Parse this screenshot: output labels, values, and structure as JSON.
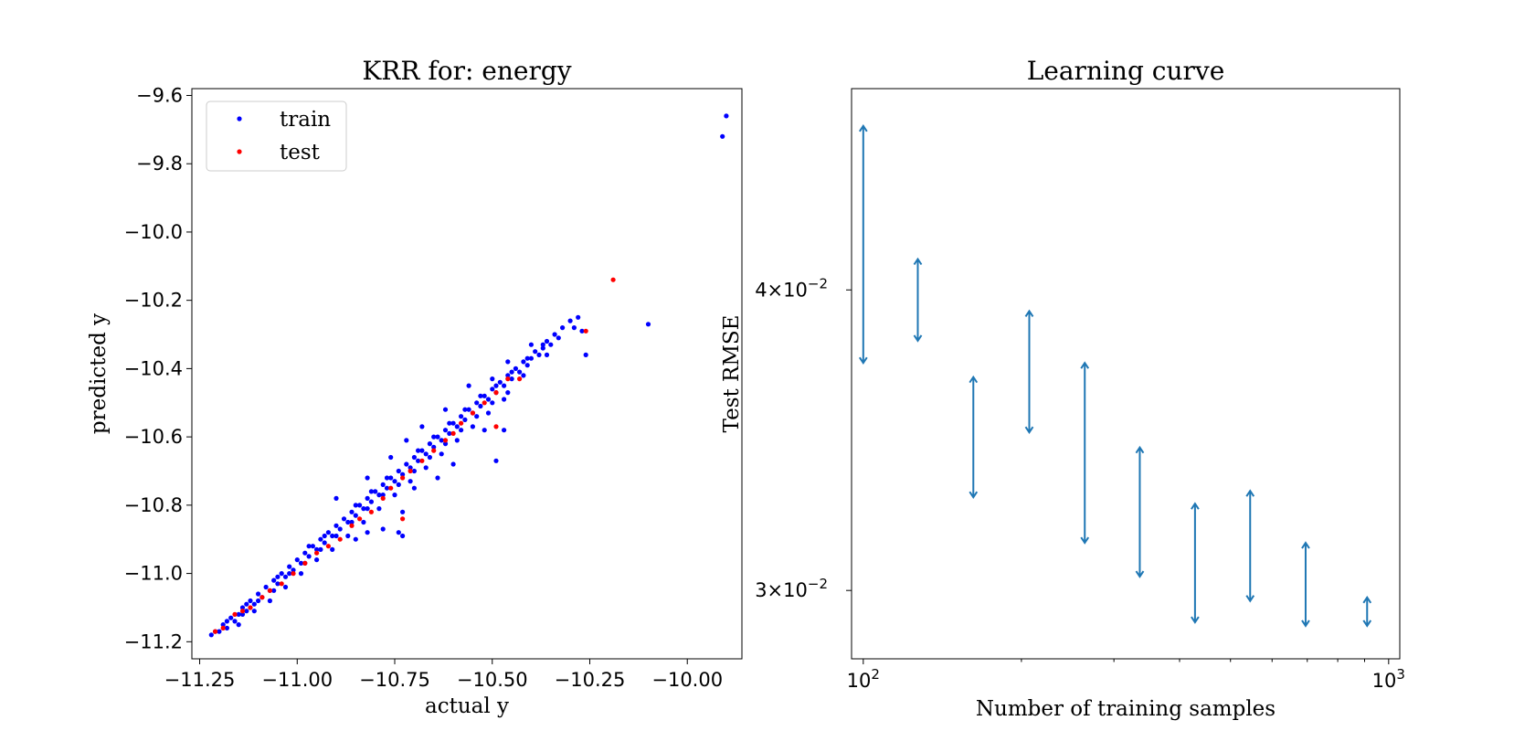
{
  "chart_data": [
    {
      "type": "scatter",
      "title": "KRR for: energy",
      "xlabel": "actual y",
      "ylabel": "predicted y",
      "xlim": [
        -11.27,
        -9.86
      ],
      "ylim": [
        -11.25,
        -9.58
      ],
      "xticks": [
        -11.25,
        -11.0,
        -10.75,
        -10.5,
        -10.25,
        -10.0
      ],
      "xtick_labels": [
        "−11.25",
        "−11.00",
        "−10.75",
        "−10.50",
        "−10.25",
        "−10.00"
      ],
      "yticks": [
        -11.2,
        -11.0,
        -10.8,
        -10.6,
        -10.4,
        -10.2,
        -10.0,
        -9.8,
        -9.6
      ],
      "ytick_labels": [
        "−11.2",
        "−11.0",
        "−10.8",
        "−10.6",
        "−10.4",
        "−10.2",
        "−10.0",
        "−9.8",
        "−9.6"
      ],
      "grid": false,
      "legend": "upper-left",
      "series": [
        {
          "name": "train",
          "color": "#0000ff",
          "points": [
            [
              -11.22,
              -11.18
            ],
            [
              -11.21,
              -11.17
            ],
            [
              -11.2,
              -11.17
            ],
            [
              -11.19,
              -11.15
            ],
            [
              -11.18,
              -11.16
            ],
            [
              -11.17,
              -11.13
            ],
            [
              -11.16,
              -11.14
            ],
            [
              -11.15,
              -11.12
            ],
            [
              -11.14,
              -11.1
            ],
            [
              -11.13,
              -11.11
            ],
            [
              -11.12,
              -11.08
            ],
            [
              -11.11,
              -11.09
            ],
            [
              -11.1,
              -11.06
            ],
            [
              -11.09,
              -11.07
            ],
            [
              -11.08,
              -11.04
            ],
            [
              -11.07,
              -11.05
            ],
            [
              -11.06,
              -11.02
            ],
            [
              -11.05,
              -11.03
            ],
            [
              -11.04,
              -11.0
            ],
            [
              -11.03,
              -11.01
            ],
            [
              -11.02,
              -10.98
            ],
            [
              -11.01,
              -10.99
            ],
            [
              -11.0,
              -10.96
            ],
            [
              -10.99,
              -10.97
            ],
            [
              -10.98,
              -10.94
            ],
            [
              -10.97,
              -10.95
            ],
            [
              -10.96,
              -10.92
            ],
            [
              -10.95,
              -10.93
            ],
            [
              -10.94,
              -10.9
            ],
            [
              -10.93,
              -10.91
            ],
            [
              -10.92,
              -10.88
            ],
            [
              -10.91,
              -10.89
            ],
            [
              -10.9,
              -10.86
            ],
            [
              -10.89,
              -10.87
            ],
            [
              -10.88,
              -10.84
            ],
            [
              -10.87,
              -10.85
            ],
            [
              -10.86,
              -10.82
            ],
            [
              -10.85,
              -10.83
            ],
            [
              -10.84,
              -10.8
            ],
            [
              -10.83,
              -10.81
            ],
            [
              -10.82,
              -10.78
            ],
            [
              -10.81,
              -10.79
            ],
            [
              -10.8,
              -10.76
            ],
            [
              -10.79,
              -10.77
            ],
            [
              -10.78,
              -10.74
            ],
            [
              -10.77,
              -10.75
            ],
            [
              -10.76,
              -10.72
            ],
            [
              -10.75,
              -10.73
            ],
            [
              -10.74,
              -10.7
            ],
            [
              -10.73,
              -10.71
            ],
            [
              -10.72,
              -10.68
            ],
            [
              -10.71,
              -10.69
            ],
            [
              -10.7,
              -10.66
            ],
            [
              -10.69,
              -10.67
            ],
            [
              -10.68,
              -10.64
            ],
            [
              -10.67,
              -10.65
            ],
            [
              -10.66,
              -10.62
            ],
            [
              -10.65,
              -10.63
            ],
            [
              -10.64,
              -10.6
            ],
            [
              -10.63,
              -10.61
            ],
            [
              -10.62,
              -10.58
            ],
            [
              -10.61,
              -10.59
            ],
            [
              -10.6,
              -10.56
            ],
            [
              -10.59,
              -10.57
            ],
            [
              -10.58,
              -10.54
            ],
            [
              -10.57,
              -10.55
            ],
            [
              -10.56,
              -10.52
            ],
            [
              -10.55,
              -10.53
            ],
            [
              -10.54,
              -10.5
            ],
            [
              -10.53,
              -10.51
            ],
            [
              -10.52,
              -10.48
            ],
            [
              -10.51,
              -10.49
            ],
            [
              -10.5,
              -10.46
            ],
            [
              -10.49,
              -10.47
            ],
            [
              -10.48,
              -10.44
            ],
            [
              -10.47,
              -10.45
            ],
            [
              -10.46,
              -10.42
            ],
            [
              -10.45,
              -10.43
            ],
            [
              -10.44,
              -10.4
            ],
            [
              -10.43,
              -10.41
            ],
            [
              -10.42,
              -10.38
            ],
            [
              -10.41,
              -10.39
            ],
            [
              -10.4,
              -10.37
            ],
            [
              -10.39,
              -10.35
            ],
            [
              -10.38,
              -10.36
            ],
            [
              -10.37,
              -10.34
            ],
            [
              -10.36,
              -10.32
            ],
            [
              -10.35,
              -10.33
            ],
            [
              -10.34,
              -10.3
            ],
            [
              -10.33,
              -10.31
            ],
            [
              -10.32,
              -10.28
            ],
            [
              -10.3,
              -10.26
            ],
            [
              -10.29,
              -10.28
            ],
            [
              -10.27,
              -10.29
            ],
            [
              -11.18,
              -11.14
            ],
            [
              -11.14,
              -11.12
            ],
            [
              -11.1,
              -11.08
            ],
            [
              -11.06,
              -11.05
            ],
            [
              -11.02,
              -11.0
            ],
            [
              -10.98,
              -10.97
            ],
            [
              -10.94,
              -10.93
            ],
            [
              -10.9,
              -10.89
            ],
            [
              -10.86,
              -10.85
            ],
            [
              -10.82,
              -10.81
            ],
            [
              -10.78,
              -10.77
            ],
            [
              -10.74,
              -10.74
            ],
            [
              -10.7,
              -10.7
            ],
            [
              -10.66,
              -10.66
            ],
            [
              -10.62,
              -10.62
            ],
            [
              -10.58,
              -10.58
            ],
            [
              -10.54,
              -10.54
            ],
            [
              -10.5,
              -10.5
            ],
            [
              -10.46,
              -10.47
            ],
            [
              -10.42,
              -10.42
            ],
            [
              -11.15,
              -11.15
            ],
            [
              -11.11,
              -11.11
            ],
            [
              -11.07,
              -11.08
            ],
            [
              -11.03,
              -11.04
            ],
            [
              -10.99,
              -11.0
            ],
            [
              -10.95,
              -10.96
            ],
            [
              -10.91,
              -10.93
            ],
            [
              -10.87,
              -10.89
            ],
            [
              -10.83,
              -10.85
            ],
            [
              -10.79,
              -10.81
            ],
            [
              -10.75,
              -10.77
            ],
            [
              -10.71,
              -10.73
            ],
            [
              -10.67,
              -10.69
            ],
            [
              -10.63,
              -10.65
            ],
            [
              -10.59,
              -10.61
            ],
            [
              -10.55,
              -10.57
            ],
            [
              -10.51,
              -10.53
            ],
            [
              -10.47,
              -10.49
            ],
            [
              -11.13,
              -11.09
            ],
            [
              -11.05,
              -11.01
            ],
            [
              -10.97,
              -10.92
            ],
            [
              -10.93,
              -10.89
            ],
            [
              -10.85,
              -10.8
            ],
            [
              -10.81,
              -10.76
            ],
            [
              -10.77,
              -10.72
            ],
            [
              -10.69,
              -10.64
            ],
            [
              -10.65,
              -10.6
            ],
            [
              -10.61,
              -10.56
            ],
            [
              -10.57,
              -10.52
            ],
            [
              -10.53,
              -10.48
            ],
            [
              -10.49,
              -10.45
            ],
            [
              -10.45,
              -10.41
            ],
            [
              -10.41,
              -10.37
            ],
            [
              -10.37,
              -10.33
            ],
            [
              -10.9,
              -10.78
            ],
            [
              -10.82,
              -10.72
            ],
            [
              -10.76,
              -10.66
            ],
            [
              -10.72,
              -10.61
            ],
            [
              -10.68,
              -10.57
            ],
            [
              -10.62,
              -10.52
            ],
            [
              -10.56,
              -10.45
            ],
            [
              -10.5,
              -10.43
            ],
            [
              -10.46,
              -10.38
            ],
            [
              -10.4,
              -10.33
            ],
            [
              -10.78,
              -10.87
            ],
            [
              -10.73,
              -10.82
            ],
            [
              -10.7,
              -10.75
            ],
            [
              -10.64,
              -10.72
            ],
            [
              -10.6,
              -10.68
            ],
            [
              -10.52,
              -10.58
            ],
            [
              -10.47,
              -10.58
            ],
            [
              -10.49,
              -10.67
            ],
            [
              -10.73,
              -10.89
            ],
            [
              -10.74,
              -10.88
            ],
            [
              -10.82,
              -10.88
            ],
            [
              -10.85,
              -10.9
            ],
            [
              -10.36,
              -10.36
            ],
            [
              -10.26,
              -10.36
            ],
            [
              -10.28,
              -10.25
            ],
            [
              -10.1,
              -10.27
            ],
            [
              -9.9,
              -9.66
            ],
            [
              -9.91,
              -9.72
            ]
          ]
        },
        {
          "name": "test",
          "color": "#ff0000",
          "points": [
            [
              -11.21,
              -11.17
            ],
            [
              -11.19,
              -11.16
            ],
            [
              -11.16,
              -11.12
            ],
            [
              -11.14,
              -11.11
            ],
            [
              -11.12,
              -11.1
            ],
            [
              -11.09,
              -11.07
            ],
            [
              -11.07,
              -11.05
            ],
            [
              -11.04,
              -11.03
            ],
            [
              -11.01,
              -11.0
            ],
            [
              -10.98,
              -10.97
            ],
            [
              -10.95,
              -10.94
            ],
            [
              -10.92,
              -10.92
            ],
            [
              -10.89,
              -10.9
            ],
            [
              -10.86,
              -10.86
            ],
            [
              -10.84,
              -10.84
            ],
            [
              -10.81,
              -10.82
            ],
            [
              -10.78,
              -10.78
            ],
            [
              -10.76,
              -10.75
            ],
            [
              -10.73,
              -10.72
            ],
            [
              -10.71,
              -10.7
            ],
            [
              -10.68,
              -10.67
            ],
            [
              -10.65,
              -10.64
            ],
            [
              -10.62,
              -10.61
            ],
            [
              -10.6,
              -10.59
            ],
            [
              -10.58,
              -10.56
            ],
            [
              -10.55,
              -10.53
            ],
            [
              -10.52,
              -10.5
            ],
            [
              -10.49,
              -10.47
            ],
            [
              -10.46,
              -10.43
            ],
            [
              -10.43,
              -10.43
            ],
            [
              -10.73,
              -10.84
            ],
            [
              -10.49,
              -10.57
            ],
            [
              -10.26,
              -10.29
            ],
            [
              -10.19,
              -10.14
            ]
          ]
        }
      ]
    },
    {
      "type": "errorbar",
      "title": "Learning curve",
      "xlabel": "Number of training samples",
      "ylabel": "Test RMSE",
      "xscale": "log",
      "yscale": "log",
      "xlim": [
        95,
        1050
      ],
      "ylim": [
        0.0281,
        0.0485
      ],
      "xtick_major": [
        {
          "value": 100,
          "base": "10",
          "exp": "2"
        },
        {
          "value": 1000,
          "base": "10",
          "exp": "3"
        }
      ],
      "xtick_minor": [
        200,
        300,
        400,
        500,
        600,
        700,
        800,
        900
      ],
      "ytick_major": [
        {
          "value": 0.04,
          "mant": "4",
          "base": "10",
          "exp": "−2"
        },
        {
          "value": 0.03,
          "mant": "3",
          "base": "10",
          "exp": "−2"
        }
      ],
      "grid": false,
      "color": "#1f77b4",
      "points": [
        {
          "n": 100,
          "upper": 0.0468,
          "lower": 0.0373
        },
        {
          "n": 127,
          "upper": 0.0412,
          "lower": 0.0381
        },
        {
          "n": 162,
          "upper": 0.0368,
          "lower": 0.0328
        },
        {
          "n": 207,
          "upper": 0.0392,
          "lower": 0.0349
        },
        {
          "n": 264,
          "upper": 0.0373,
          "lower": 0.0314
        },
        {
          "n": 336,
          "upper": 0.0344,
          "lower": 0.0304
        },
        {
          "n": 428,
          "upper": 0.0326,
          "lower": 0.0291
        },
        {
          "n": 545,
          "upper": 0.033,
          "lower": 0.0297
        },
        {
          "n": 695,
          "upper": 0.0314,
          "lower": 0.029
        },
        {
          "n": 910,
          "upper": 0.0298,
          "lower": 0.029
        }
      ]
    }
  ]
}
